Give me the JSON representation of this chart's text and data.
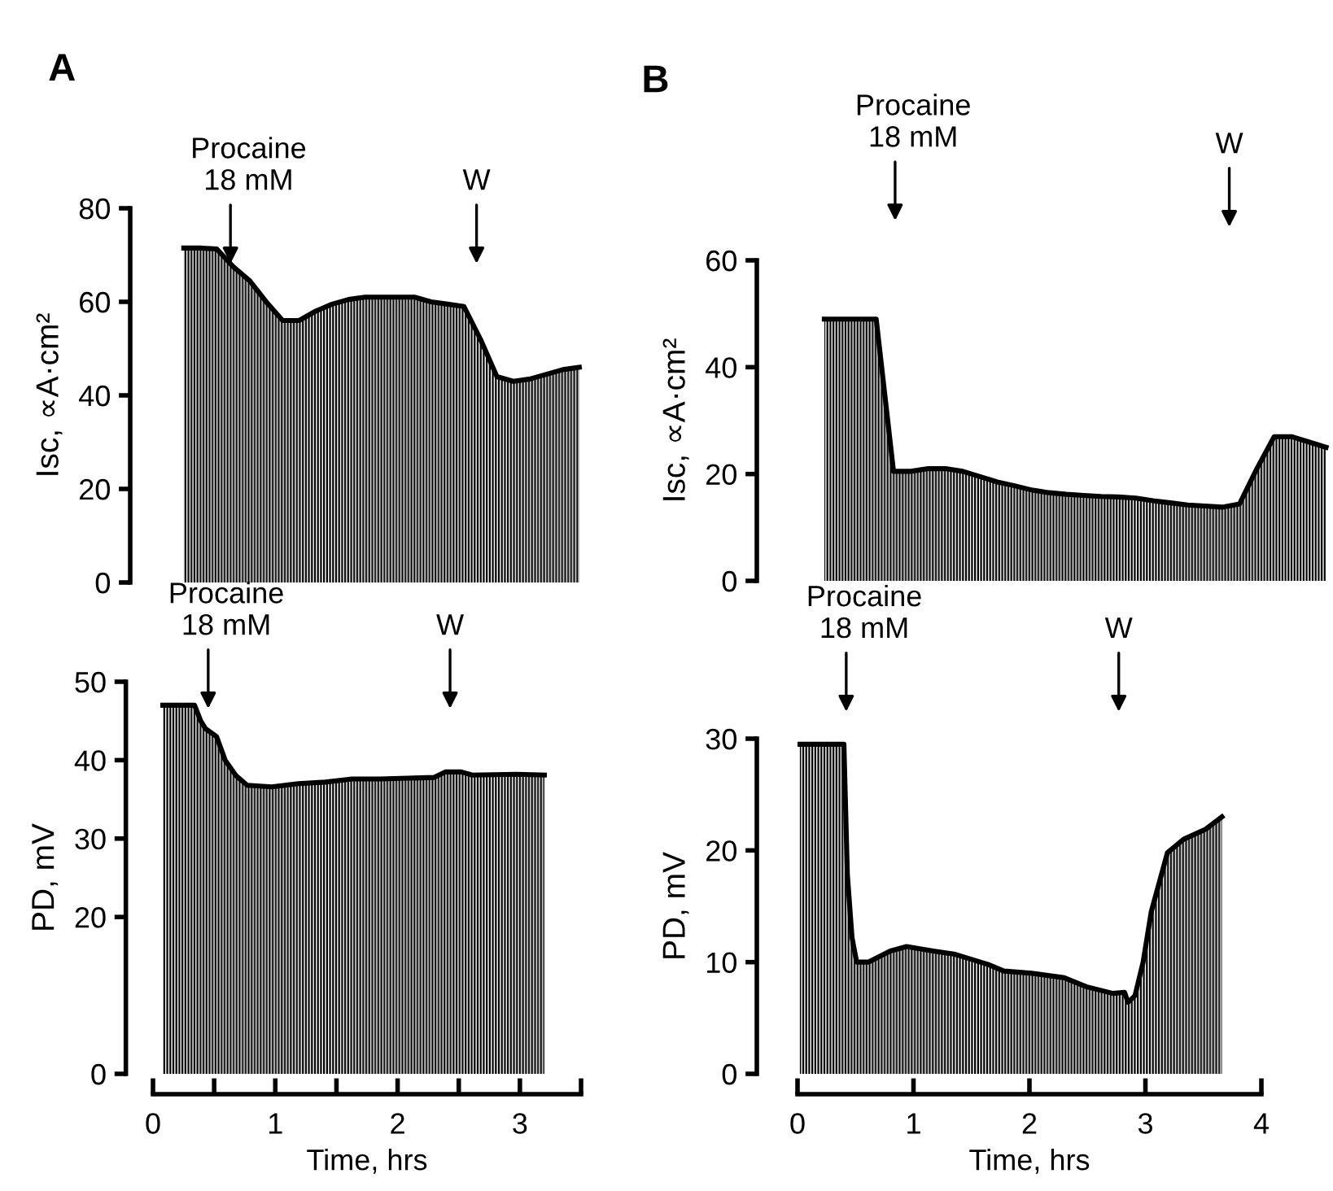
{
  "chart_data": [
    {
      "type": "area",
      "title": "A",
      "ylabel": "Isc, ∝A·cm²",
      "ylim": [
        0,
        80
      ],
      "yticks": [
        0,
        20,
        40,
        60,
        80
      ],
      "tick_labels": "y",
      "grid": false,
      "legend": false,
      "categories": [
        null,
        null,
        null,
        null,
        null,
        null,
        null,
        null,
        null,
        null,
        null,
        null,
        null,
        null,
        null,
        null,
        null,
        null,
        null,
        null,
        null,
        null,
        null,
        null,
        null
      ],
      "series": [
        {
          "color": "#000000",
          "values": [
            71.5,
            71.5,
            71.3,
            67.5,
            64.5,
            60,
            56,
            56,
            58,
            59.5,
            60.5,
            61,
            61,
            61,
            61,
            60,
            59.5,
            59,
            52,
            44,
            43,
            43.5,
            44.5,
            45.5,
            46
          ]
        }
      ],
      "annotations": [
        "Procaine\n18 mM",
        "W"
      ]
    },
    {
      "type": "area",
      "title": "B",
      "ylabel": "Isc, ∝A·cm²",
      "ylim": [
        0,
        60
      ],
      "yticks": [
        0,
        20,
        40,
        60
      ],
      "tick_labels": "y",
      "grid": false,
      "legend": false,
      "categories": [
        null,
        null,
        null,
        null,
        null,
        null,
        null,
        null,
        null,
        null,
        null,
        null,
        null,
        null,
        null,
        null,
        null,
        null,
        null,
        null,
        null,
        null,
        null,
        null,
        null,
        null,
        null,
        null,
        null,
        null
      ],
      "series": [
        {
          "color": "#000000",
          "values": [
            49,
            49,
            49,
            49,
            20.5,
            20.5,
            21,
            21,
            20.5,
            19.5,
            18.5,
            17.8,
            17,
            16.5,
            16.2,
            16,
            15.8,
            15.7,
            15.5,
            15,
            14.6,
            14.2,
            14,
            13.8,
            14.4,
            21,
            27,
            27,
            26,
            25
          ]
        }
      ],
      "annotations": [
        "Procaine\n18 mM",
        "W"
      ]
    },
    {
      "type": "area",
      "xlabel": "Time, hrs",
      "ylabel": "PD, mV",
      "xlim": [
        0,
        3.5
      ],
      "ylim": [
        0,
        50
      ],
      "grid": false,
      "legend": false,
      "xticks": [
        0,
        {
          "value": 0.5,
          "label": null
        },
        1,
        {
          "value": 1.5,
          "label": null
        },
        2,
        {
          "value": 2.5,
          "label": null
        },
        3,
        {
          "value": 3.5,
          "label": null
        }
      ],
      "yticks": [
        0,
        20,
        30,
        40,
        50
      ],
      "series": [
        {
          "color": "#000000",
          "x": [
            0.08,
            0.34,
            0.39,
            0.43,
            0.52,
            0.59,
            0.68,
            0.77,
            0.97,
            1.19,
            1.41,
            1.63,
            1.86,
            2.3,
            2.39,
            2.52,
            2.61,
            2.97,
            3.2
          ],
          "values": [
            47,
            47,
            45,
            44,
            43,
            40,
            38,
            36.8,
            36.6,
            37,
            37.2,
            37.6,
            37.6,
            37.8,
            38.5,
            38.5,
            38.1,
            38.2,
            38.1
          ]
        }
      ],
      "annotations": [
        "Procaine\n18 mM",
        "W"
      ]
    },
    {
      "type": "area",
      "xlabel": "Time, hrs",
      "ylabel": "PD, mV",
      "xlim": [
        0,
        4
      ],
      "ylim": [
        0,
        30
      ],
      "grid": false,
      "legend": false,
      "xticks": [
        0,
        1,
        2,
        3,
        4
      ],
      "yticks": [
        0,
        10,
        20,
        30
      ],
      "series": [
        {
          "color": "#000000",
          "x": [
            0.02,
            0.4,
            0.43,
            0.47,
            0.51,
            0.61,
            0.8,
            0.94,
            1.17,
            1.36,
            1.64,
            1.78,
            2.02,
            2.3,
            2.49,
            2.72,
            2.82,
            2.85,
            2.91,
            2.98,
            3.05,
            3.19,
            3.33,
            3.52,
            3.66
          ],
          "values": [
            29.5,
            29.5,
            17.8,
            12.2,
            10,
            10,
            11,
            11.4,
            11,
            10.7,
            9.8,
            9.2,
            9,
            8.6,
            7.8,
            7.2,
            7.3,
            6.4,
            7,
            10,
            14.5,
            19.8,
            21,
            21.9,
            23
          ]
        }
      ],
      "annotations": [
        "Procaine\n18 mM",
        "W"
      ]
    }
  ]
}
